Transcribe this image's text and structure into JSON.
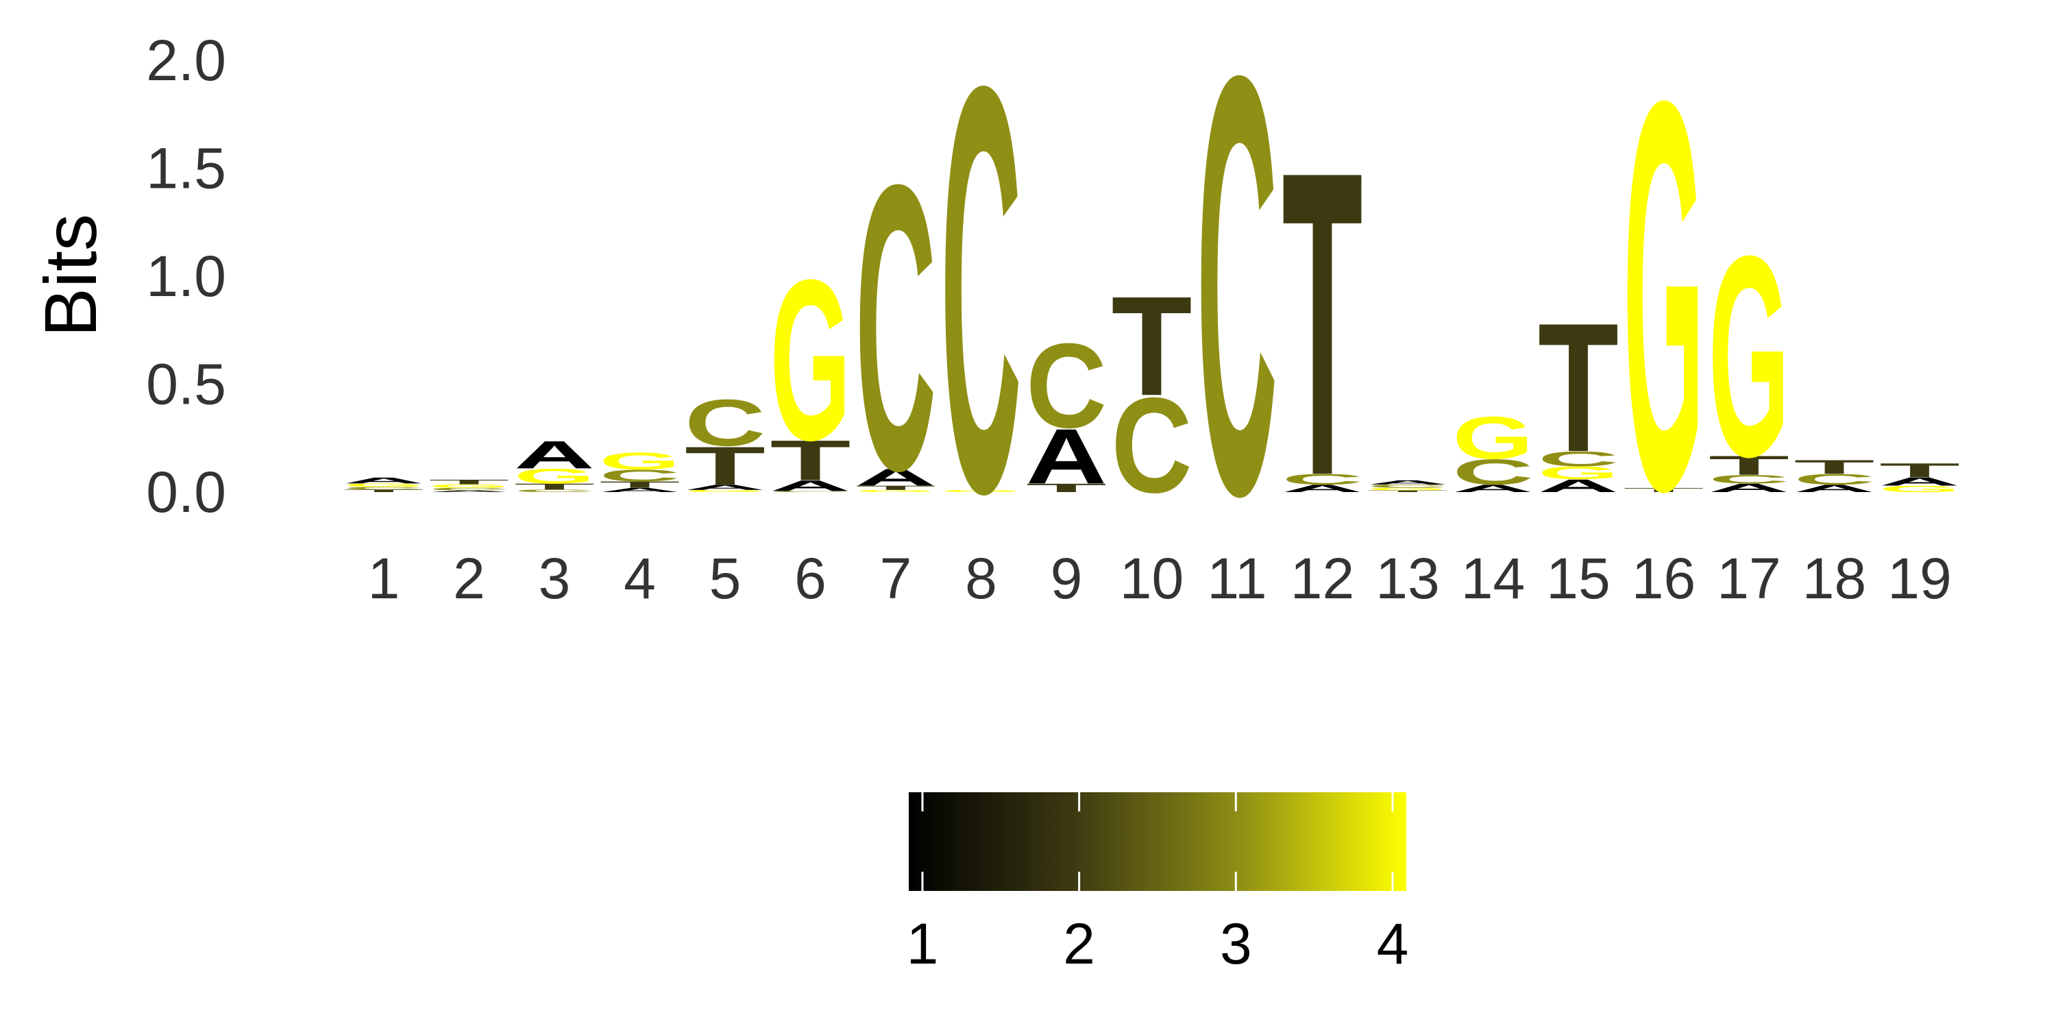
{
  "chart_data": {
    "type": "sequence-logo",
    "ylabel": "Bits",
    "ylim": [
      0,
      2
    ],
    "yticks": [
      "0.0",
      "0.5",
      "1.0",
      "1.5",
      "2.0"
    ],
    "positions": [
      "1",
      "2",
      "3",
      "4",
      "5",
      "6",
      "7",
      "8",
      "9",
      "10",
      "11",
      "12",
      "13",
      "14",
      "15",
      "16",
      "17",
      "18",
      "19"
    ],
    "letter_colors": {
      "A": "#000000",
      "T": "#3d3a12",
      "C": "#8f8f15",
      "G": "#ffff00"
    },
    "stacks": [
      [
        {
          "letter": "T",
          "height": 0.012
        },
        {
          "letter": "C",
          "height": 0.012
        },
        {
          "letter": "G",
          "height": 0.016
        },
        {
          "letter": "A",
          "height": 0.028
        }
      ],
      [
        {
          "letter": "A",
          "height": 0.008
        },
        {
          "letter": "C",
          "height": 0.012
        },
        {
          "letter": "G",
          "height": 0.016
        },
        {
          "letter": "T",
          "height": 0.022
        }
      ],
      [
        {
          "letter": "C",
          "height": 0.012
        },
        {
          "letter": "T",
          "height": 0.028
        },
        {
          "letter": "G",
          "height": 0.07
        },
        {
          "letter": "A",
          "height": 0.13
        }
      ],
      [
        {
          "letter": "A",
          "height": 0.02
        },
        {
          "letter": "T",
          "height": 0.03
        },
        {
          "letter": "C",
          "height": 0.055
        },
        {
          "letter": "G",
          "height": 0.08
        }
      ],
      [
        {
          "letter": "G",
          "height": 0.01
        },
        {
          "letter": "A",
          "height": 0.025
        },
        {
          "letter": "T",
          "height": 0.18
        },
        {
          "letter": "C",
          "height": 0.22
        }
      ],
      [
        {
          "letter": "C",
          "height": 0.005
        },
        {
          "letter": "A",
          "height": 0.05
        },
        {
          "letter": "T",
          "height": 0.19
        },
        {
          "letter": "G",
          "height": 0.76
        }
      ],
      [
        {
          "letter": "G",
          "height": 0.01
        },
        {
          "letter": "T",
          "height": 0.02
        },
        {
          "letter": "A",
          "height": 0.08
        },
        {
          "letter": "C",
          "height": 1.35
        }
      ],
      [
        {
          "letter": "G",
          "height": 0.01
        },
        {
          "letter": "C",
          "height": 1.92
        }
      ],
      [
        {
          "letter": "T",
          "height": 0.04
        },
        {
          "letter": "A",
          "height": 0.26
        },
        {
          "letter": "C",
          "height": 0.4
        }
      ],
      [
        {
          "letter": "C",
          "height": 0.45
        },
        {
          "letter": "T",
          "height": 0.47
        }
      ],
      [
        {
          "letter": "C",
          "height": 1.98
        }
      ],
      [
        {
          "letter": "A",
          "height": 0.035
        },
        {
          "letter": "C",
          "height": 0.05
        },
        {
          "letter": "T",
          "height": 1.44
        }
      ],
      [
        {
          "letter": "T",
          "height": 0.008
        },
        {
          "letter": "G",
          "height": 0.012
        },
        {
          "letter": "C",
          "height": 0.015
        },
        {
          "letter": "A",
          "height": 0.02
        }
      ],
      [
        {
          "letter": "A",
          "height": 0.035
        },
        {
          "letter": "C",
          "height": 0.12
        },
        {
          "letter": "G",
          "height": 0.2
        }
      ],
      [
        {
          "letter": "A",
          "height": 0.06
        },
        {
          "letter": "G",
          "height": 0.06
        },
        {
          "letter": "C",
          "height": 0.07
        },
        {
          "letter": "T",
          "height": 0.61
        }
      ],
      [
        {
          "letter": "T",
          "height": 0.02
        },
        {
          "letter": "G",
          "height": 1.84
        }
      ],
      [
        {
          "letter": "A",
          "height": 0.04
        },
        {
          "letter": "C",
          "height": 0.04
        },
        {
          "letter": "T",
          "height": 0.09
        },
        {
          "letter": "G",
          "height": 0.95
        }
      ],
      [
        {
          "letter": "A",
          "height": 0.035
        },
        {
          "letter": "C",
          "height": 0.05
        },
        {
          "letter": "T",
          "height": 0.065
        }
      ],
      [
        {
          "letter": "G",
          "height": 0.03
        },
        {
          "letter": "A",
          "height": 0.04
        },
        {
          "letter": "T",
          "height": 0.065
        }
      ]
    ],
    "legend": {
      "type": "colorbar",
      "position": "bottom",
      "min": 1,
      "max": 4,
      "ticks": [
        "1",
        "2",
        "3",
        "4"
      ],
      "stops": [
        "#000000",
        "#3d3a12",
        "#8f8f15",
        "#ffff00"
      ]
    }
  }
}
